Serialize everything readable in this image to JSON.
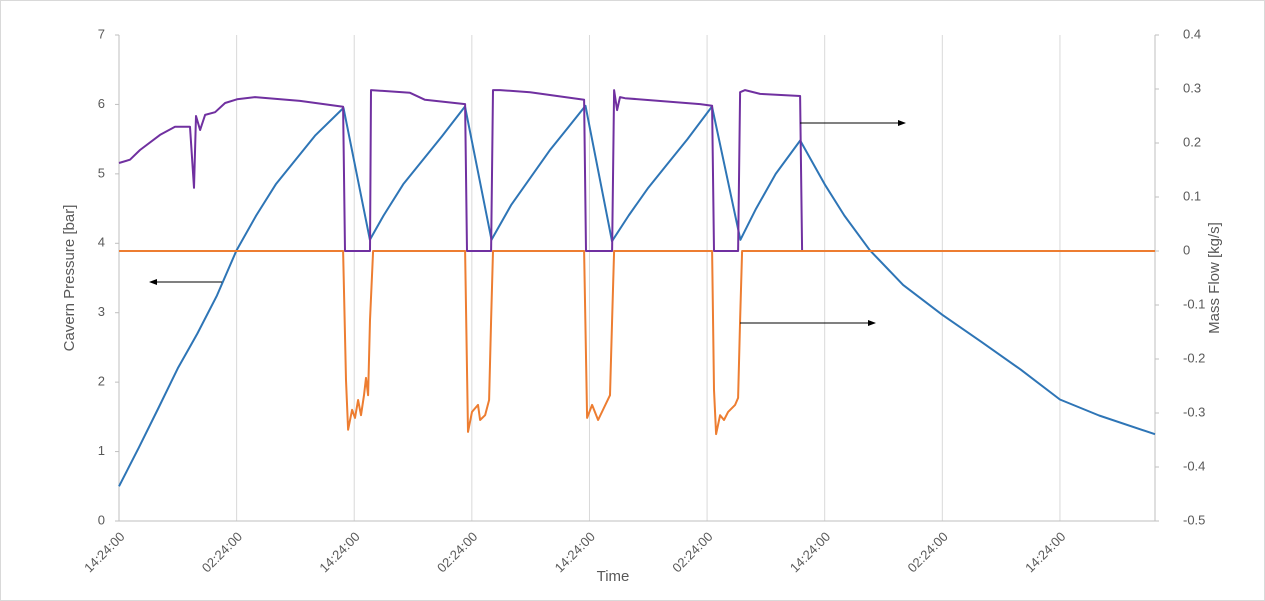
{
  "chart_data": {
    "type": "line",
    "x_label": "Time",
    "y_label": "Cavern Pressure [bar]",
    "y2_label": "Mass Flow [kg/s]",
    "xlim": [
      0,
      105.7
    ],
    "xticks": [
      {
        "value": 0,
        "label": "14:24:00"
      },
      {
        "value": 12,
        "label": "02:24:00"
      },
      {
        "value": 24,
        "label": "14:24:00"
      },
      {
        "value": 36,
        "label": "02:24:00"
      },
      {
        "value": 48,
        "label": "14:24:00"
      },
      {
        "value": 60,
        "label": "02:24:00"
      },
      {
        "value": 72,
        "label": "14:24:00"
      },
      {
        "value": 84,
        "label": "02:24:00"
      },
      {
        "value": 96,
        "label": "14:24:00"
      }
    ],
    "ylim": [
      0,
      7
    ],
    "yticks": [
      0,
      1,
      2,
      3,
      4,
      5,
      6,
      7
    ],
    "y2lim": [
      -0.5,
      0.4
    ],
    "y2ticks": [
      -0.5,
      -0.4,
      -0.3,
      -0.2,
      -0.1,
      0,
      0.1,
      0.2,
      0.3,
      0.4
    ],
    "grid": true,
    "series": [
      {
        "color": "#2e75b6",
        "axis": "y",
        "x": [
          0,
          2,
          4,
          6,
          7.2,
          8,
          10,
          12,
          14,
          16,
          18,
          20,
          22.9,
          25.6,
          27,
          29,
          31,
          33,
          35.3,
          38,
          40,
          42,
          44,
          46,
          47.6,
          50.3,
          52,
          54,
          56,
          58,
          60.5,
          63.4,
          65,
          67,
          69.5,
          72,
          74,
          76.6,
          80,
          84,
          88,
          92,
          96,
          100,
          105.7
        ],
        "values": [
          0.5,
          1.05,
          1.62,
          2.2,
          2.5,
          2.7,
          3.25,
          3.9,
          4.4,
          4.85,
          5.2,
          5.55,
          5.95,
          4.05,
          4.4,
          4.85,
          5.2,
          5.55,
          5.97,
          4.05,
          4.55,
          4.95,
          5.35,
          5.7,
          5.98,
          4.03,
          4.4,
          4.8,
          5.15,
          5.5,
          5.97,
          4.05,
          4.5,
          5,
          5.48,
          4.85,
          4.4,
          3.9,
          3.4,
          2.97,
          2.58,
          2.18,
          1.75,
          1.52,
          1.25
        ]
      },
      {
        "color": "#7030a0",
        "axis": "y2",
        "x": [
          0,
          1.12,
          2.14,
          4.18,
          5.71,
          7.24,
          7.65,
          7.86,
          8.27,
          8.78,
          9.8,
          10.82,
          12.04,
          13.88,
          18.47,
          22.86,
          23.06,
          25.61,
          25.71,
          29.69,
          31.22,
          35.31,
          35.51,
          37.96,
          38.16,
          38.88,
          41.94,
          47.45,
          47.65,
          50.31,
          50.51,
          50.82,
          51.12,
          51.63,
          59.29,
          60.51,
          60.71,
          63.16,
          63.37,
          63.88,
          65.41,
          69.49,
          69.69
        ],
        "values": [
          0.163,
          0.169,
          0.187,
          0.215,
          0.23,
          0.23,
          0.117,
          0.25,
          0.224,
          0.252,
          0.257,
          0.274,
          0.281,
          0.285,
          0.278,
          0.267,
          0,
          0,
          0.298,
          0.293,
          0.28,
          0.272,
          0,
          0,
          0.298,
          0.298,
          0.294,
          0.28,
          0,
          0,
          0.298,
          0.261,
          0.285,
          0.283,
          0.272,
          0.269,
          0,
          0,
          0.294,
          0.298,
          0.291,
          0.287,
          0
        ]
      },
      {
        "color": "#ed7d31",
        "axis": "y2",
        "x": [
          0,
          22.86,
          23.16,
          23.37,
          23.78,
          24.08,
          24.39,
          24.69,
          25,
          25.2,
          25.41,
          25.61,
          25.92,
          35.31,
          35.61,
          36.02,
          36.63,
          36.84,
          37.35,
          37.76,
          37.96,
          38.16,
          47.45,
          47.76,
          48.27,
          48.88,
          50.1,
          50.31,
          50.51,
          60.51,
          60.71,
          60.92,
          61.33,
          61.73,
          62.14,
          62.86,
          63.16,
          63.37,
          63.57,
          105.7
        ],
        "values": [
          0,
          0,
          -0.239,
          -0.331,
          -0.294,
          -0.309,
          -0.276,
          -0.304,
          -0.267,
          -0.235,
          -0.267,
          -0.128,
          0,
          0,
          -0.335,
          -0.298,
          -0.285,
          -0.313,
          -0.304,
          -0.276,
          -0.128,
          0,
          0,
          -0.309,
          -0.285,
          -0.313,
          -0.267,
          -0.128,
          0,
          0,
          -0.257,
          -0.339,
          -0.304,
          -0.313,
          -0.298,
          -0.285,
          -0.272,
          -0.128,
          0,
          0
        ]
      }
    ]
  }
}
